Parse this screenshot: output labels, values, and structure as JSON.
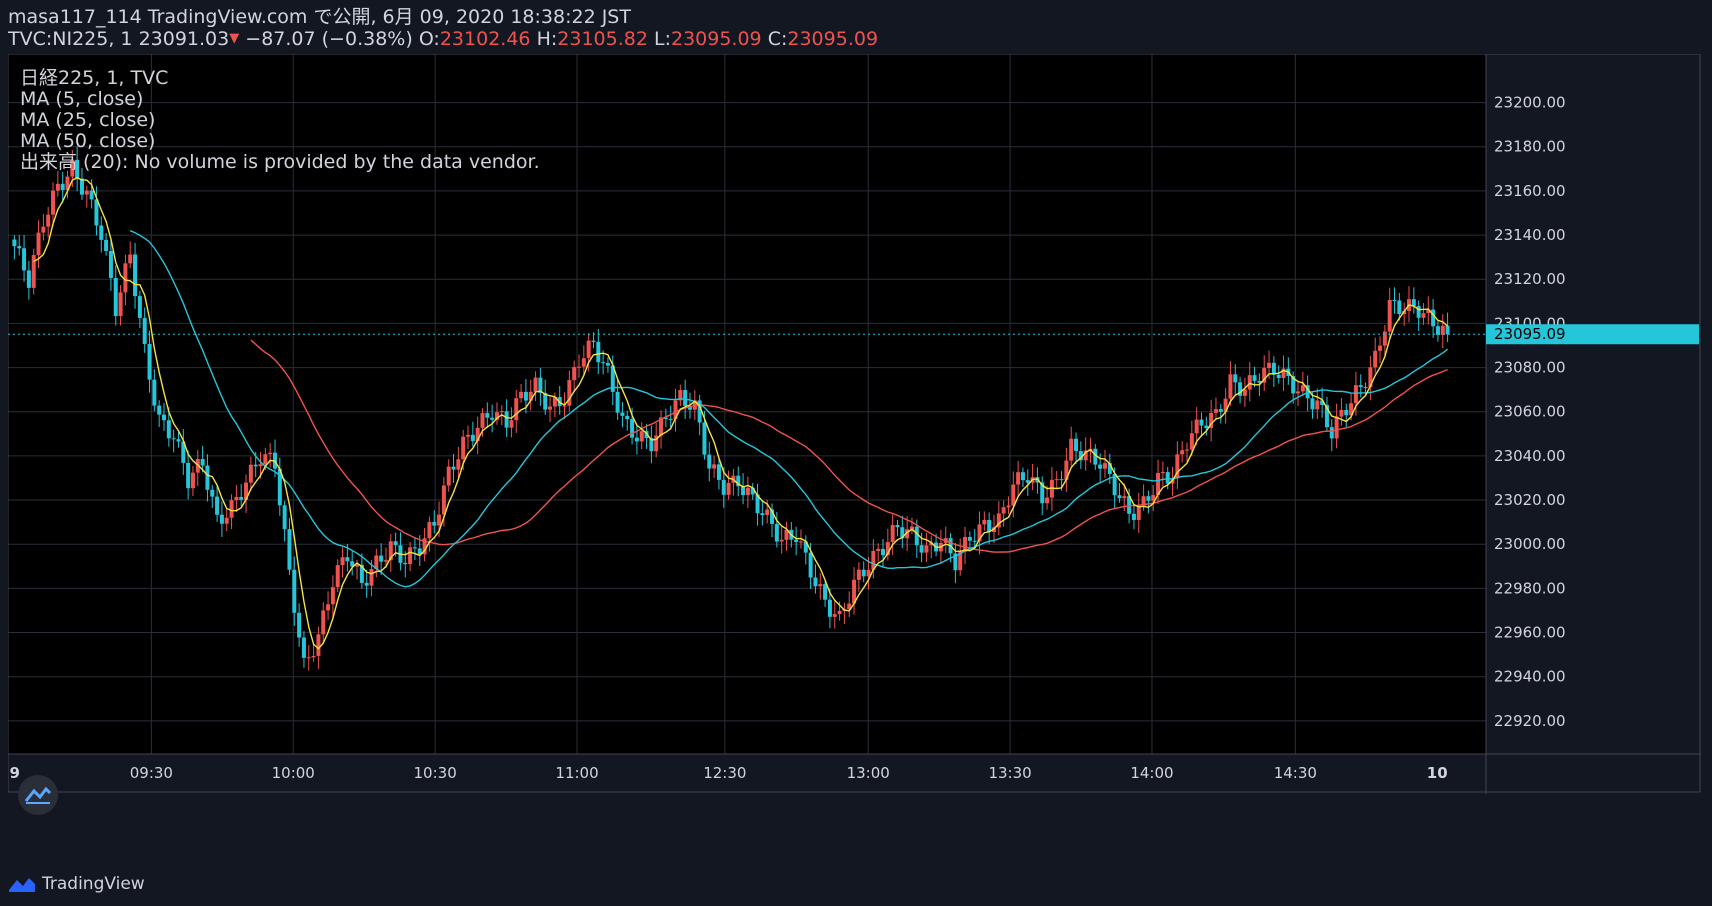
{
  "header": {
    "line1": "masa117_114 TradingView.com で公開, 6月 09, 2020 18:38:22 JST",
    "symbol": "TVC:NI225, 1",
    "last": "23091.03",
    "change_arrow": "▼",
    "change": "−87.07 (−0.38%)",
    "o_label": "O:",
    "o": "23102.46",
    "h_label": "H:",
    "h": "23105.82",
    "l_label": "L:",
    "l": "23095.09",
    "c_label": "C:",
    "c": "23095.09"
  },
  "legend": {
    "title": "日経225, 1, TVC",
    "ma5": "MA (5, close)",
    "ma25": "MA (25, close)",
    "ma50": "MA (50, close)",
    "volume": "出来高 (20): No volume is provided by the data vendor."
  },
  "footer": {
    "brand": "TradingView"
  },
  "colors": {
    "background": "#131722",
    "chart_bg": "#000000",
    "grid": "#2a2e39",
    "up": "#ef5350",
    "down": "#26c6da",
    "ma5": "#f5e342",
    "ma25": "#26c6da",
    "ma50": "#ef5350",
    "price_line": "#26c6da"
  },
  "chart_data": {
    "type": "candlestick",
    "ylim": [
      22905,
      23222
    ],
    "y_ticks": [
      "23200.00",
      "23180.00",
      "23160.00",
      "23140.00",
      "23120.00",
      "23100.00",
      "23080.00",
      "23060.00",
      "23040.00",
      "23020.00",
      "23000.00",
      "22980.00",
      "22960.00",
      "22940.00",
      "22920.00"
    ],
    "x_ticks": [
      "9",
      "09:30",
      "10:00",
      "10:30",
      "11:00",
      "12:30",
      "13:00",
      "13:30",
      "14:00",
      "14:30",
      "10"
    ],
    "last_price_label": "23095.09",
    "last_price": 23095.09,
    "ohlc_anchors": [
      [
        0,
        23135
      ],
      [
        3,
        23118
      ],
      [
        6,
        23145
      ],
      [
        9,
        23162
      ],
      [
        12,
        23172
      ],
      [
        15,
        23160
      ],
      [
        18,
        23140
      ],
      [
        21,
        23105
      ],
      [
        24,
        23130
      ],
      [
        27,
        23088
      ],
      [
        30,
        23058
      ],
      [
        33,
        23050
      ],
      [
        36,
        23028
      ],
      [
        39,
        23035
      ],
      [
        42,
        23010
      ],
      [
        45,
        23018
      ],
      [
        48,
        23030
      ],
      [
        51,
        23040
      ],
      [
        54,
        23035
      ],
      [
        57,
        22985
      ],
      [
        60,
        22945
      ],
      [
        63,
        22960
      ],
      [
        66,
        22985
      ],
      [
        69,
        22995
      ],
      [
        72,
        22980
      ],
      [
        75,
        22990
      ],
      [
        78,
        23000
      ],
      [
        81,
        22995
      ],
      [
        84,
        23000
      ],
      [
        87,
        23008
      ],
      [
        90,
        23030
      ],
      [
        93,
        23045
      ],
      [
        96,
        23055
      ],
      [
        99,
        23062
      ],
      [
        102,
        23055
      ],
      [
        105,
        23065
      ],
      [
        108,
        23070
      ],
      [
        111,
        23062
      ],
      [
        114,
        23068
      ],
      [
        117,
        23085
      ],
      [
        120,
        23090
      ],
      [
        123,
        23075
      ],
      [
        126,
        23055
      ],
      [
        129,
        23050
      ],
      [
        132,
        23048
      ],
      [
        135,
        23058
      ],
      [
        138,
        23065
      ],
      [
        141,
        23060
      ],
      [
        144,
        23035
      ],
      [
        147,
        23028
      ],
      [
        150,
        23030
      ],
      [
        153,
        23020
      ],
      [
        156,
        23010
      ],
      [
        159,
        23000
      ],
      [
        162,
        23005
      ],
      [
        165,
        22990
      ],
      [
        168,
        22975
      ],
      [
        171,
        22965
      ],
      [
        174,
        22980
      ],
      [
        177,
        22990
      ],
      [
        180,
        23000
      ],
      [
        183,
        23010
      ],
      [
        186,
        23005
      ],
      [
        189,
        22995
      ],
      [
        192,
        23000
      ],
      [
        195,
        22992
      ],
      [
        198,
        23005
      ],
      [
        201,
        23010
      ],
      [
        204,
        23010
      ],
      [
        207,
        23025
      ],
      [
        210,
        23030
      ],
      [
        213,
        23022
      ],
      [
        216,
        23030
      ],
      [
        219,
        23045
      ],
      [
        222,
        23040
      ],
      [
        225,
        23035
      ],
      [
        228,
        23025
      ],
      [
        231,
        23015
      ],
      [
        234,
        23020
      ],
      [
        237,
        23030
      ],
      [
        240,
        23030
      ],
      [
        243,
        23045
      ],
      [
        246,
        23055
      ],
      [
        249,
        23060
      ],
      [
        252,
        23075
      ],
      [
        255,
        23070
      ],
      [
        258,
        23075
      ],
      [
        261,
        23078
      ],
      [
        264,
        23075
      ],
      [
        267,
        23070
      ],
      [
        270,
        23065
      ],
      [
        273,
        23050
      ],
      [
        276,
        23060
      ],
      [
        279,
        23070
      ],
      [
        282,
        23085
      ],
      [
        285,
        23110
      ],
      [
        288,
        23108
      ],
      [
        291,
        23105
      ],
      [
        294,
        23098
      ],
      [
        297,
        23095.09
      ]
    ],
    "series": [
      {
        "name": "MA (5, close)",
        "color": "#f5e342"
      },
      {
        "name": "MA (25, close)",
        "color": "#26c6da"
      },
      {
        "name": "MA (50, close)",
        "color": "#ef5350"
      }
    ]
  }
}
